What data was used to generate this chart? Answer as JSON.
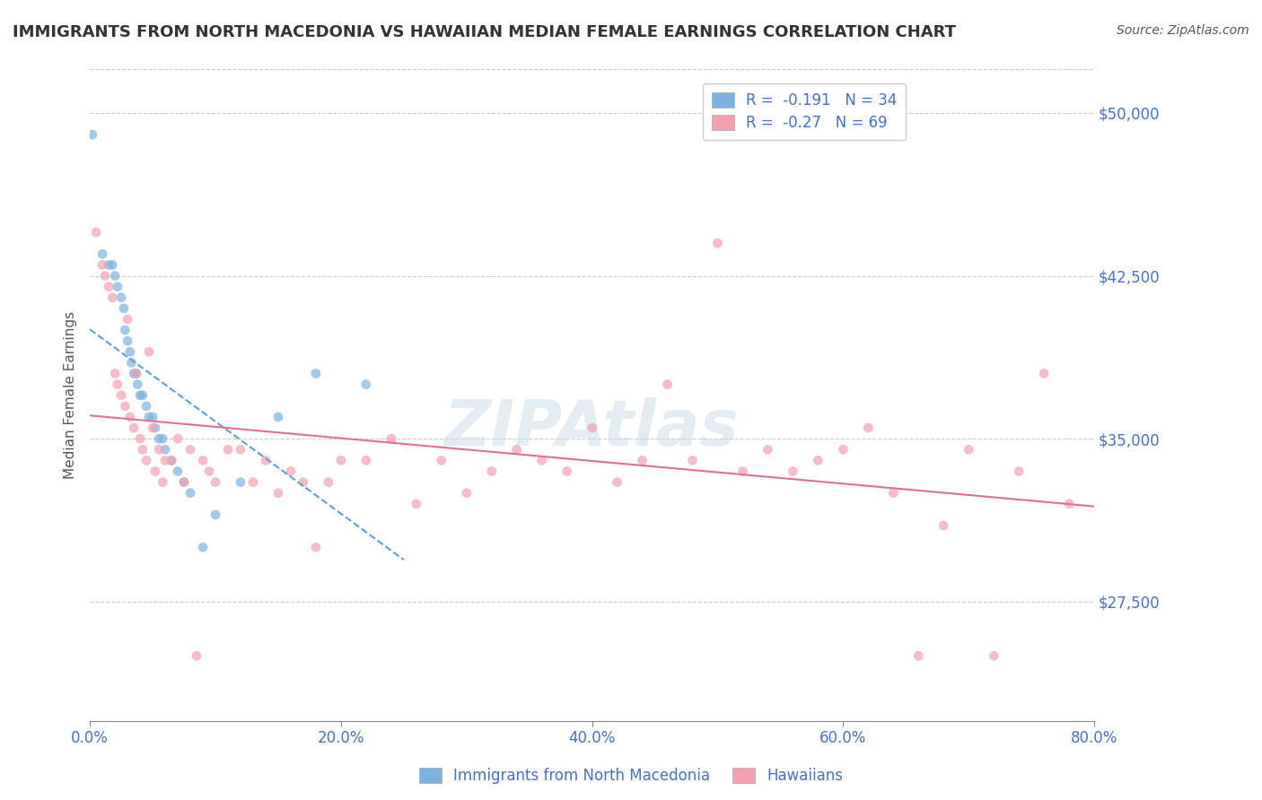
{
  "title": "IMMIGRANTS FROM NORTH MACEDONIA VS HAWAIIAN MEDIAN FEMALE EARNINGS CORRELATION CHART",
  "source": "Source: ZipAtlas.com",
  "xlabel": "",
  "ylabel": "Median Female Earnings",
  "xlim": [
    0.0,
    0.8
  ],
  "ylim": [
    22000,
    52000
  ],
  "yticks": [
    27500,
    35000,
    42500,
    50000
  ],
  "ytick_labels": [
    "$27,500",
    "$35,000",
    "$42,500",
    "$50,000"
  ],
  "xticks": [
    0.0,
    0.2,
    0.4,
    0.6,
    0.8
  ],
  "xtick_labels": [
    "0.0%",
    "20.0%",
    "40.0%",
    "60.0%",
    "80.0%"
  ],
  "blue_R": -0.191,
  "blue_N": 34,
  "pink_R": -0.27,
  "pink_N": 69,
  "blue_color": "#7ab3e0",
  "pink_color": "#f4a0b0",
  "blue_scatter_color": "#7ab3e0",
  "pink_scatter_color": "#f4a0b0",
  "blue_line_color": "#5a9fd4",
  "pink_line_color": "#e07090",
  "title_color": "#333333",
  "axis_color": "#4472c4",
  "watermark_color": "#c8d8e8",
  "legend_label_blue": "Immigrants from North Macedonia",
  "legend_label_pink": "Hawaiians",
  "blue_points_x": [
    0.002,
    0.01,
    0.015,
    0.018,
    0.02,
    0.022,
    0.025,
    0.027,
    0.028,
    0.03,
    0.032,
    0.033,
    0.035,
    0.037,
    0.038,
    0.04,
    0.042,
    0.045,
    0.047,
    0.05,
    0.052,
    0.055,
    0.058,
    0.06,
    0.065,
    0.07,
    0.075,
    0.08,
    0.09,
    0.1,
    0.12,
    0.15,
    0.18,
    0.22
  ],
  "blue_points_y": [
    49000,
    43500,
    43000,
    43000,
    42500,
    42000,
    41500,
    41000,
    40000,
    39500,
    39000,
    38500,
    38000,
    38000,
    37500,
    37000,
    37000,
    36500,
    36000,
    36000,
    35500,
    35000,
    35000,
    34500,
    34000,
    33500,
    33000,
    32500,
    30000,
    31500,
    33000,
    36000,
    38000,
    37500
  ],
  "pink_points_x": [
    0.005,
    0.01,
    0.012,
    0.015,
    0.018,
    0.02,
    0.022,
    0.025,
    0.028,
    0.03,
    0.032,
    0.035,
    0.037,
    0.04,
    0.042,
    0.045,
    0.047,
    0.05,
    0.052,
    0.055,
    0.058,
    0.06,
    0.065,
    0.07,
    0.075,
    0.08,
    0.085,
    0.09,
    0.095,
    0.1,
    0.11,
    0.12,
    0.13,
    0.14,
    0.15,
    0.16,
    0.17,
    0.18,
    0.19,
    0.2,
    0.22,
    0.24,
    0.26,
    0.28,
    0.3,
    0.32,
    0.34,
    0.36,
    0.38,
    0.4,
    0.42,
    0.44,
    0.46,
    0.48,
    0.5,
    0.52,
    0.54,
    0.56,
    0.58,
    0.6,
    0.62,
    0.64,
    0.66,
    0.68,
    0.7,
    0.72,
    0.74,
    0.76,
    0.78
  ],
  "pink_points_y": [
    44500,
    43000,
    42500,
    42000,
    41500,
    38000,
    37500,
    37000,
    36500,
    40500,
    36000,
    35500,
    38000,
    35000,
    34500,
    34000,
    39000,
    35500,
    33500,
    34500,
    33000,
    34000,
    34000,
    35000,
    33000,
    34500,
    25000,
    34000,
    33500,
    33000,
    34500,
    34500,
    33000,
    34000,
    32500,
    33500,
    33000,
    30000,
    33000,
    34000,
    34000,
    35000,
    32000,
    34000,
    32500,
    33500,
    34500,
    34000,
    33500,
    35500,
    33000,
    34000,
    37500,
    34000,
    44000,
    33500,
    34500,
    33500,
    34000,
    34500,
    35500,
    32500,
    25000,
    31000,
    34500,
    25000,
    33500,
    38000,
    32000
  ]
}
